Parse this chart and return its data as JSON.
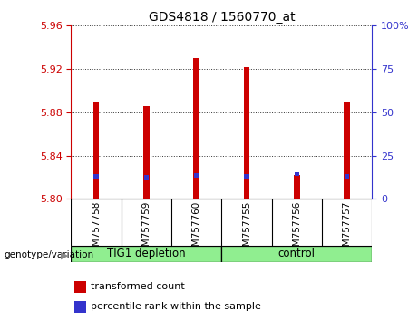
{
  "title": "GDS4818 / 1560770_at",
  "samples": [
    "GSM757758",
    "GSM757759",
    "GSM757760",
    "GSM757755",
    "GSM757756",
    "GSM757757"
  ],
  "red_values": [
    5.89,
    5.886,
    5.93,
    5.922,
    5.822,
    5.89
  ],
  "blue_values": [
    5.821,
    5.82,
    5.822,
    5.821,
    5.823,
    5.821
  ],
  "y_min": 5.8,
  "y_max": 5.96,
  "y_ticks_left": [
    5.8,
    5.84,
    5.88,
    5.92,
    5.96
  ],
  "y_ticks_right": [
    0,
    25,
    50,
    75,
    100
  ],
  "groups": [
    {
      "label": "TIG1 depletion",
      "indices": [
        0,
        1,
        2
      ],
      "color": "#90EE90"
    },
    {
      "label": "control",
      "indices": [
        3,
        4,
        5
      ],
      "color": "#90EE90"
    }
  ],
  "genotype_label": "genotype/variation",
  "legend_red": "transformed count",
  "legend_blue": "percentile rank within the sample",
  "bar_width": 0.12,
  "blue_bar_width": 0.1,
  "red_color": "#CC0000",
  "blue_color": "#3333CC",
  "left_tick_color": "#CC0000",
  "right_tick_color": "#3333CC",
  "bg_color": "#FFFFFF",
  "plot_bg_color": "#FFFFFF",
  "group_box_color": "#D0D0D0",
  "dotted_grid_color": "#333333",
  "spine_color": "#000000"
}
